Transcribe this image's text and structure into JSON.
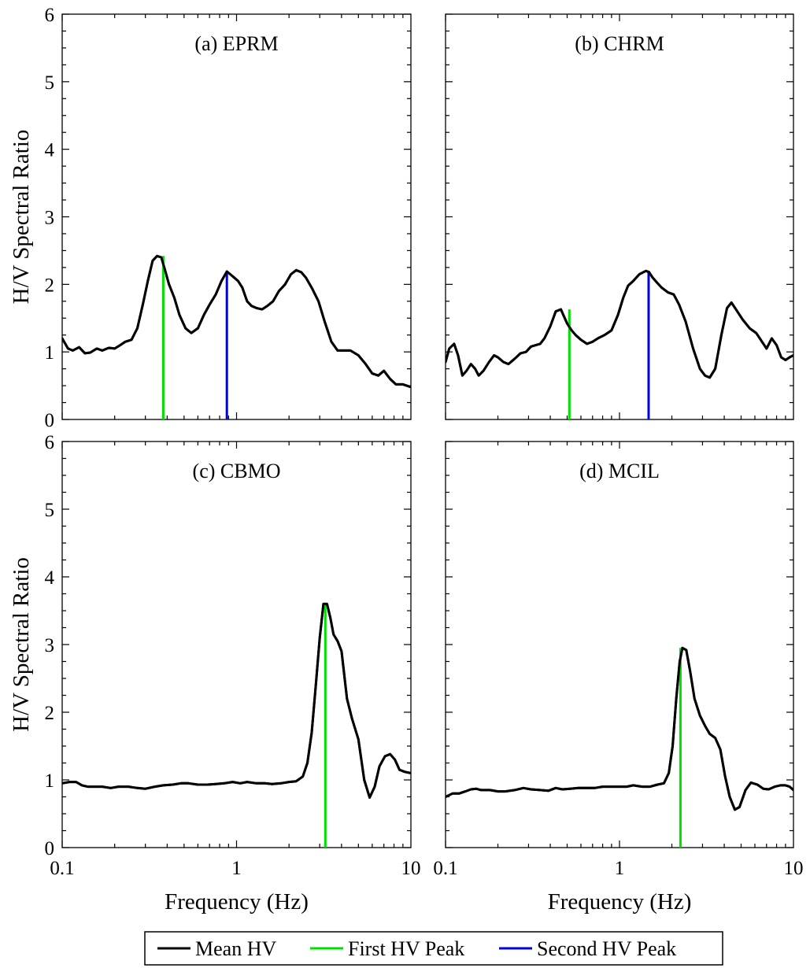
{
  "chart_data": [
    {
      "type": "line",
      "title": "(a) EPRM",
      "ylabel": "H/V Spectral Ratio",
      "xlabel": "",
      "xscale": "log",
      "xlim": [
        0.1,
        10
      ],
      "ylim": [
        0,
        6
      ],
      "yticks": [
        "0",
        "1",
        "2",
        "3",
        "4",
        "5",
        "6"
      ],
      "xticks": [],
      "series": [
        {
          "name": "Mean HV",
          "color": "#000000",
          "x": [
            0.1,
            0.108,
            0.115,
            0.125,
            0.135,
            0.145,
            0.158,
            0.17,
            0.185,
            0.2,
            0.215,
            0.23,
            0.25,
            0.27,
            0.29,
            0.31,
            0.33,
            0.35,
            0.37,
            0.39,
            0.41,
            0.44,
            0.47,
            0.51,
            0.55,
            0.6,
            0.65,
            0.7,
            0.76,
            0.82,
            0.88,
            0.92,
            0.97,
            1.02,
            1.08,
            1.15,
            1.22,
            1.3,
            1.4,
            1.5,
            1.62,
            1.75,
            1.9,
            2.05,
            2.2,
            2.35,
            2.5,
            2.7,
            2.95,
            3.2,
            3.5,
            3.8,
            4.1,
            4.5,
            5.0,
            5.5,
            6.0,
            6.5,
            7.0,
            7.6,
            8.2,
            9.0,
            10.0
          ],
          "values": [
            1.2,
            1.05,
            1.02,
            1.07,
            0.98,
            0.99,
            1.05,
            1.02,
            1.06,
            1.05,
            1.1,
            1.15,
            1.18,
            1.35,
            1.7,
            2.05,
            2.35,
            2.42,
            2.4,
            2.2,
            2.0,
            1.8,
            1.55,
            1.35,
            1.28,
            1.35,
            1.55,
            1.7,
            1.85,
            2.05,
            2.19,
            2.15,
            2.1,
            2.05,
            1.95,
            1.75,
            1.68,
            1.65,
            1.63,
            1.68,
            1.75,
            1.9,
            2.0,
            2.15,
            2.21,
            2.18,
            2.1,
            1.95,
            1.75,
            1.45,
            1.15,
            1.02,
            1.02,
            1.02,
            0.95,
            0.82,
            0.68,
            0.65,
            0.72,
            0.6,
            0.52,
            0.52,
            0.48
          ]
        },
        {
          "name": "First HV Peak",
          "color": "#00e000",
          "x": 0.38,
          "value": 2.42
        },
        {
          "name": "Second HV Peak",
          "color": "#0000e6",
          "x": 0.88,
          "value": 2.19
        }
      ]
    },
    {
      "type": "line",
      "title": "(b) CHRM",
      "ylabel": "",
      "xlabel": "",
      "xscale": "log",
      "xlim": [
        0.1,
        10
      ],
      "ylim": [
        0,
        6
      ],
      "yticks": [],
      "xticks": [],
      "series": [
        {
          "name": "Mean HV",
          "color": "#000000",
          "x": [
            0.1,
            0.105,
            0.112,
            0.118,
            0.125,
            0.132,
            0.14,
            0.148,
            0.155,
            0.165,
            0.178,
            0.19,
            0.2,
            0.215,
            0.23,
            0.25,
            0.27,
            0.29,
            0.31,
            0.33,
            0.35,
            0.37,
            0.4,
            0.43,
            0.46,
            0.5,
            0.53,
            0.56,
            0.6,
            0.65,
            0.7,
            0.75,
            0.82,
            0.9,
            0.98,
            1.05,
            1.12,
            1.2,
            1.3,
            1.42,
            1.48,
            1.55,
            1.65,
            1.75,
            1.9,
            2.05,
            2.2,
            2.4,
            2.65,
            2.9,
            3.1,
            3.3,
            3.55,
            3.85,
            4.15,
            4.4,
            4.7,
            5.1,
            5.6,
            6.1,
            6.6,
            7.0,
            7.5,
            8.0,
            8.5,
            9.0,
            9.5,
            10.0
          ],
          "values": [
            0.85,
            1.05,
            1.12,
            0.95,
            0.65,
            0.72,
            0.82,
            0.75,
            0.65,
            0.72,
            0.85,
            0.95,
            0.92,
            0.85,
            0.82,
            0.9,
            0.98,
            1.0,
            1.08,
            1.1,
            1.12,
            1.2,
            1.38,
            1.6,
            1.63,
            1.42,
            1.32,
            1.25,
            1.18,
            1.12,
            1.15,
            1.2,
            1.25,
            1.32,
            1.55,
            1.8,
            1.98,
            2.05,
            2.15,
            2.2,
            2.18,
            2.1,
            2.02,
            1.95,
            1.88,
            1.85,
            1.7,
            1.45,
            1.05,
            0.75,
            0.65,
            0.62,
            0.75,
            1.25,
            1.65,
            1.73,
            1.62,
            1.48,
            1.35,
            1.28,
            1.15,
            1.05,
            1.2,
            1.1,
            0.92,
            0.88,
            0.92,
            0.95
          ]
        },
        {
          "name": "First HV Peak",
          "color": "#00e000",
          "x": 0.515,
          "value": 1.63
        },
        {
          "name": "Second HV Peak",
          "color": "#0000e6",
          "x": 1.47,
          "value": 2.2
        }
      ]
    },
    {
      "type": "line",
      "title": "(c) CBMO",
      "ylabel": "H/V Spectral Ratio",
      "xlabel": "Frequency (Hz)",
      "xscale": "log",
      "xlim": [
        0.1,
        10
      ],
      "ylim": [
        0,
        6
      ],
      "yticks": [
        "0",
        "1",
        "2",
        "3",
        "4",
        "5",
        "6"
      ],
      "xticks": [
        "0.1",
        "1",
        "10"
      ],
      "series": [
        {
          "name": "Mean HV",
          "color": "#000000",
          "x": [
            0.1,
            0.11,
            0.12,
            0.13,
            0.14,
            0.15,
            0.17,
            0.19,
            0.21,
            0.24,
            0.27,
            0.3,
            0.34,
            0.38,
            0.43,
            0.48,
            0.53,
            0.6,
            0.68,
            0.76,
            0.85,
            0.95,
            1.05,
            1.15,
            1.3,
            1.45,
            1.6,
            1.8,
            2.0,
            2.2,
            2.4,
            2.55,
            2.7,
            2.85,
            3.0,
            3.15,
            3.3,
            3.45,
            3.6,
            3.8,
            4.0,
            4.3,
            4.6,
            5.0,
            5.4,
            5.8,
            6.2,
            6.6,
            7.1,
            7.6,
            8.1,
            8.6,
            9.2,
            10.0
          ],
          "values": [
            0.95,
            0.97,
            0.97,
            0.92,
            0.9,
            0.9,
            0.9,
            0.88,
            0.9,
            0.9,
            0.88,
            0.87,
            0.9,
            0.92,
            0.93,
            0.95,
            0.95,
            0.93,
            0.93,
            0.94,
            0.95,
            0.97,
            0.95,
            0.97,
            0.95,
            0.95,
            0.94,
            0.95,
            0.97,
            0.98,
            1.05,
            1.25,
            1.7,
            2.4,
            3.1,
            3.6,
            3.6,
            3.4,
            3.15,
            3.05,
            2.9,
            2.2,
            1.9,
            1.6,
            1.0,
            0.74,
            0.9,
            1.2,
            1.35,
            1.38,
            1.3,
            1.15,
            1.12,
            1.1
          ]
        },
        {
          "name": "First HV Peak",
          "color": "#00e000",
          "x": 3.23,
          "value": 3.6
        }
      ]
    },
    {
      "type": "line",
      "title": "(d) MCIL",
      "ylabel": "",
      "xlabel": "Frequency (Hz)",
      "xscale": "log",
      "xlim": [
        0.1,
        10
      ],
      "ylim": [
        0,
        6
      ],
      "yticks": [],
      "xticks": [
        "0.1",
        "1",
        "10"
      ],
      "series": [
        {
          "name": "Mean HV",
          "color": "#000000",
          "x": [
            0.1,
            0.11,
            0.12,
            0.13,
            0.14,
            0.15,
            0.16,
            0.18,
            0.2,
            0.22,
            0.25,
            0.28,
            0.31,
            0.35,
            0.39,
            0.43,
            0.47,
            0.52,
            0.58,
            0.65,
            0.72,
            0.8,
            0.9,
            1.0,
            1.1,
            1.2,
            1.35,
            1.5,
            1.65,
            1.8,
            1.92,
            2.02,
            2.12,
            2.22,
            2.3,
            2.42,
            2.55,
            2.7,
            2.9,
            3.1,
            3.3,
            3.55,
            3.8,
            4.05,
            4.3,
            4.6,
            4.9,
            5.3,
            5.7,
            6.2,
            6.7,
            7.2,
            7.8,
            8.4,
            9.0,
            9.5,
            10.0
          ],
          "values": [
            0.75,
            0.8,
            0.8,
            0.83,
            0.86,
            0.87,
            0.85,
            0.85,
            0.83,
            0.83,
            0.85,
            0.88,
            0.86,
            0.85,
            0.84,
            0.88,
            0.86,
            0.87,
            0.88,
            0.88,
            0.88,
            0.9,
            0.9,
            0.9,
            0.9,
            0.92,
            0.9,
            0.9,
            0.93,
            0.95,
            1.1,
            1.5,
            2.2,
            2.75,
            2.95,
            2.92,
            2.6,
            2.2,
            1.95,
            1.8,
            1.68,
            1.62,
            1.45,
            1.05,
            0.75,
            0.56,
            0.6,
            0.85,
            0.96,
            0.93,
            0.87,
            0.86,
            0.9,
            0.92,
            0.92,
            0.9,
            0.85
          ]
        },
        {
          "name": "First HV Peak",
          "color": "#00e000",
          "x": 2.24,
          "value": 2.95
        }
      ]
    }
  ],
  "legend": {
    "placement": "bottom-center",
    "entries": [
      {
        "label": "Mean HV",
        "color": "#000000"
      },
      {
        "label": "First HV Peak",
        "color": "#00e000"
      },
      {
        "label": "Second HV Peak",
        "color": "#0000e6"
      }
    ]
  }
}
